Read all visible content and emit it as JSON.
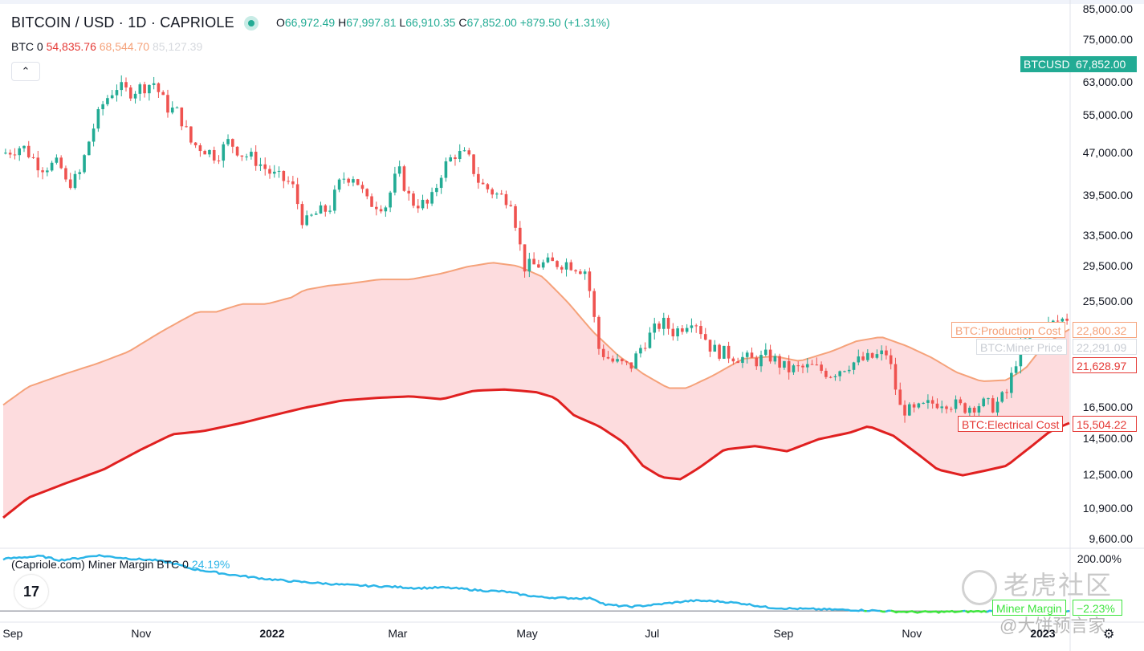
{
  "header": {
    "title": "BITCOIN / USD · 1D · CAPRIOLE",
    "ohlc": {
      "open_key": "O",
      "open": "66,972.49",
      "high_key": "H",
      "high": "67,997.81",
      "low_key": "L",
      "low": "66,910.35",
      "close_key": "C",
      "close": "67,852.00",
      "change": "+879.50 (+1.31%)"
    }
  },
  "indicator_legend": {
    "name": "BTC 0",
    "electrical": "54,835.76",
    "production": "68,544.70",
    "miner_price": "85,127.39"
  },
  "collapse_symbol": "⌃",
  "miner_margin_legend": {
    "name": "(Capriole.com) Miner Margin BTC 0",
    "value": "24.19%"
  },
  "tv_logo": "17",
  "watermark": {
    "brand": "老虎社区",
    "author": "@大饼预言家"
  },
  "price_tags": [
    {
      "label": "BTCUSD",
      "value": "67,852.00",
      "color": "#22ab94"
    },
    {
      "label": "BTC:Production Cost",
      "value": "22,800.32",
      "color": "#f5a27a"
    },
    {
      "label": "BTC:Miner Price",
      "value": "22,291.09",
      "color": "#d9dde3"
    },
    {
      "label": "",
      "value": "21,628.97",
      "color": "#e53935"
    },
    {
      "label": "BTC:Electrical Cost",
      "value": "15,504.22",
      "color": "#e53935"
    },
    {
      "label": "Miner Margin",
      "value": "−2.23%",
      "color": "#3ee53e"
    }
  ],
  "colors": {
    "up": "#22ab94",
    "down": "#ef5350",
    "production": "#f5a27a",
    "electrical": "#e02020",
    "band_fill": "#fddcde",
    "margin_pos": "#2bb5e8",
    "margin_neg": "#3ee53e"
  },
  "chart_data": {
    "type": "candlestick",
    "title": "BITCOIN / USD · 1D · CAPRIOLE",
    "scale": "log",
    "y_ticks": [
      "85,000.00",
      "75,000.00",
      "63,000.00",
      "55,000.00",
      "47,000.00",
      "39,500.00",
      "33,500.00",
      "29,500.00",
      "25,500.00",
      "16,500.00",
      "14,500.00",
      "12,500.00",
      "10,900.00",
      "9,600.00"
    ],
    "y_tick_values": [
      85000,
      75000,
      63000,
      55000,
      47000,
      39500,
      33500,
      29500,
      25500,
      16500,
      14500,
      12500,
      10900,
      9600
    ],
    "x_ticks": [
      "Sep",
      "Nov",
      "2022",
      "Mar",
      "May",
      "Jul",
      "Sep",
      "Nov",
      "2023"
    ],
    "x_tick_positions": [
      0,
      2,
      4,
      6,
      8,
      10,
      12,
      14,
      16
    ],
    "x_range": [
      0,
      17.0
    ],
    "bold_x_ticks": [
      "2022",
      "2023"
    ],
    "close_anchors": [
      [
        0,
        47000
      ],
      [
        0.3,
        48500
      ],
      [
        0.6,
        44500
      ],
      [
        0.9,
        45000
      ],
      [
        1.0,
        41500
      ],
      [
        1.2,
        42500
      ],
      [
        1.4,
        51000
      ],
      [
        1.6,
        58000
      ],
      [
        1.8,
        62000
      ],
      [
        2.0,
        60500
      ],
      [
        2.4,
        63000
      ],
      [
        2.6,
        57000
      ],
      [
        2.8,
        55500
      ],
      [
        3.0,
        49000
      ],
      [
        3.2,
        48000
      ],
      [
        3.4,
        46500
      ],
      [
        3.6,
        49500
      ],
      [
        3.8,
        47000
      ],
      [
        4.0,
        46000
      ],
      [
        4.3,
        43000
      ],
      [
        4.6,
        41500
      ],
      [
        4.8,
        35000
      ],
      [
        4.95,
        36500
      ],
      [
        5.2,
        37500
      ],
      [
        5.4,
        42500
      ],
      [
        5.6,
        43000
      ],
      [
        5.8,
        38500
      ],
      [
        6.1,
        38000
      ],
      [
        6.3,
        44000
      ],
      [
        6.5,
        38500
      ],
      [
        6.8,
        38000
      ],
      [
        7.0,
        44000
      ],
      [
        7.2,
        47000
      ],
      [
        7.4,
        46500
      ],
      [
        7.6,
        41500
      ],
      [
        7.9,
        39500
      ],
      [
        8.1,
        39000
      ],
      [
        8.3,
        29500
      ],
      [
        8.6,
        29800
      ],
      [
        9.0,
        30000
      ],
      [
        9.3,
        29000
      ],
      [
        9.5,
        21000
      ],
      [
        9.7,
        20000
      ],
      [
        10.0,
        19500
      ],
      [
        10.2,
        21500
      ],
      [
        10.5,
        23500
      ],
      [
        10.7,
        22500
      ],
      [
        11.0,
        24000
      ],
      [
        11.3,
        21000
      ],
      [
        11.6,
        20500
      ],
      [
        12.0,
        20000
      ],
      [
        12.2,
        20500
      ],
      [
        12.5,
        19300
      ],
      [
        12.9,
        19500
      ],
      [
        13.2,
        19000
      ],
      [
        13.5,
        19800
      ],
      [
        13.8,
        20200
      ],
      [
        14.1,
        20700
      ],
      [
        14.3,
        16500
      ],
      [
        14.5,
        16200
      ],
      [
        14.8,
        16800
      ],
      [
        15.0,
        17000
      ],
      [
        15.3,
        16500
      ],
      [
        15.6,
        16800
      ],
      [
        15.8,
        16600
      ],
      [
        16.0,
        17500
      ],
      [
        16.2,
        21000
      ],
      [
        16.4,
        22500
      ],
      [
        16.6,
        23000
      ],
      [
        16.8,
        23500
      ],
      [
        17.0,
        24000
      ]
    ],
    "series": [
      {
        "name": "BTC:Production Cost",
        "points": [
          [
            0,
            16700
          ],
          [
            0.4,
            18000
          ],
          [
            1.0,
            19000
          ],
          [
            1.5,
            19800
          ],
          [
            2.0,
            20800
          ],
          [
            2.5,
            22500
          ],
          [
            2.8,
            23500
          ],
          [
            3.1,
            24500
          ],
          [
            3.4,
            24500
          ],
          [
            3.8,
            25300
          ],
          [
            4.2,
            25300
          ],
          [
            4.6,
            26000
          ],
          [
            4.8,
            26800
          ],
          [
            5.2,
            27300
          ],
          [
            5.5,
            27500
          ],
          [
            6.0,
            28000
          ],
          [
            6.5,
            28000
          ],
          [
            7.0,
            28700
          ],
          [
            7.4,
            29500
          ],
          [
            7.8,
            30000
          ],
          [
            8.2,
            29600
          ],
          [
            8.6,
            28300
          ],
          [
            9.0,
            25500
          ],
          [
            9.4,
            22600
          ],
          [
            9.8,
            20500
          ],
          [
            10.2,
            19000
          ],
          [
            10.6,
            17900
          ],
          [
            10.9,
            17900
          ],
          [
            11.3,
            18800
          ],
          [
            11.8,
            20200
          ],
          [
            12.3,
            20400
          ],
          [
            12.7,
            20000
          ],
          [
            13.2,
            20800
          ],
          [
            13.6,
            21700
          ],
          [
            14.0,
            22100
          ],
          [
            14.4,
            21300
          ],
          [
            14.8,
            20300
          ],
          [
            15.2,
            19100
          ],
          [
            15.6,
            18400
          ],
          [
            16.0,
            18500
          ],
          [
            16.3,
            19400
          ],
          [
            16.6,
            21400
          ],
          [
            17.0,
            22800
          ]
        ]
      },
      {
        "name": "BTC:Electrical Cost",
        "points": [
          [
            0,
            10500
          ],
          [
            0.4,
            11400
          ],
          [
            1.0,
            12100
          ],
          [
            1.6,
            12800
          ],
          [
            2.2,
            13900
          ],
          [
            2.7,
            14800
          ],
          [
            3.2,
            15000
          ],
          [
            3.8,
            15500
          ],
          [
            4.3,
            16000
          ],
          [
            4.8,
            16500
          ],
          [
            5.4,
            17000
          ],
          [
            6.0,
            17200
          ],
          [
            6.5,
            17300
          ],
          [
            7.0,
            17100
          ],
          [
            7.5,
            17700
          ],
          [
            8.0,
            17800
          ],
          [
            8.5,
            17600
          ],
          [
            8.8,
            17200
          ],
          [
            9.1,
            16000
          ],
          [
            9.5,
            15300
          ],
          [
            9.9,
            14300
          ],
          [
            10.2,
            13000
          ],
          [
            10.5,
            12400
          ],
          [
            10.8,
            12300
          ],
          [
            11.1,
            12900
          ],
          [
            11.5,
            13900
          ],
          [
            12.0,
            14100
          ],
          [
            12.5,
            13800
          ],
          [
            13.0,
            14500
          ],
          [
            13.5,
            14900
          ],
          [
            13.8,
            15300
          ],
          [
            14.2,
            14700
          ],
          [
            14.6,
            13600
          ],
          [
            14.9,
            12800
          ],
          [
            15.3,
            12500
          ],
          [
            15.6,
            12700
          ],
          [
            16.0,
            13000
          ],
          [
            16.4,
            14100
          ],
          [
            16.7,
            15000
          ],
          [
            17.0,
            15500
          ]
        ]
      }
    ],
    "miner_margin": {
      "name": "(Capriole.com) Miner Margin BTC 0",
      "ylim": [
        -25,
        200
      ],
      "y_ticks": [
        "200.00%"
      ],
      "y_tick_values": [
        200
      ],
      "points": [
        [
          0,
          182
        ],
        [
          0.3,
          188
        ],
        [
          0.6,
          192
        ],
        [
          0.9,
          178
        ],
        [
          1.2,
          185
        ],
        [
          1.5,
          195
        ],
        [
          1.8,
          188
        ],
        [
          2.1,
          182
        ],
        [
          2.4,
          178
        ],
        [
          2.7,
          168
        ],
        [
          3.0,
          148
        ],
        [
          3.3,
          138
        ],
        [
          3.6,
          128
        ],
        [
          3.9,
          120
        ],
        [
          4.2,
          112
        ],
        [
          4.6,
          104
        ],
        [
          5.0,
          98
        ],
        [
          5.4,
          92
        ],
        [
          5.8,
          88
        ],
        [
          6.2,
          85
        ],
        [
          6.6,
          80
        ],
        [
          7.0,
          82
        ],
        [
          7.3,
          78
        ],
        [
          7.6,
          72
        ],
        [
          8.0,
          68
        ],
        [
          8.3,
          56
        ],
        [
          8.6,
          48
        ],
        [
          9.0,
          45
        ],
        [
          9.4,
          44
        ],
        [
          9.6,
          22
        ],
        [
          10.0,
          15
        ],
        [
          10.4,
          22
        ],
        [
          10.8,
          32
        ],
        [
          11.0,
          36
        ],
        [
          11.4,
          34
        ],
        [
          11.8,
          26
        ],
        [
          12.2,
          12
        ],
        [
          12.6,
          8
        ],
        [
          13.0,
          6
        ],
        [
          13.4,
          4
        ],
        [
          13.8,
          2
        ],
        [
          14.2,
          -2
        ],
        [
          14.6,
          -4
        ],
        [
          15.0,
          -3
        ],
        [
          15.4,
          -2
        ],
        [
          15.8,
          -1
        ],
        [
          16.2,
          0
        ],
        [
          16.6,
          -1
        ],
        [
          17.0,
          -2.23
        ]
      ]
    }
  }
}
